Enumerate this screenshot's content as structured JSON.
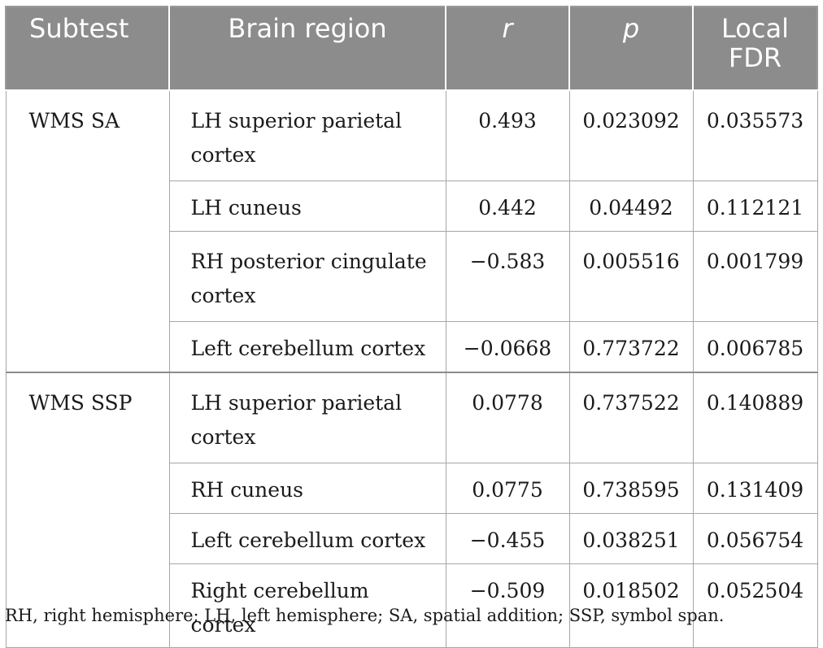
{
  "table": {
    "headers": {
      "subtest": "Subtest",
      "region": "Brain region",
      "r": "r",
      "p": "p",
      "fdr_line1": "Local",
      "fdr_line2": "FDR"
    },
    "groups": [
      {
        "subtest": "WMS SA",
        "rows": [
          {
            "region_line1": "LH superior parietal",
            "region_line2": "cortex",
            "r": "0.493",
            "p": "0.023092",
            "fdr": "0.035573"
          },
          {
            "region_line1": "LH cuneus",
            "region_line2": "",
            "r": "0.442",
            "p": "0.04492",
            "fdr": "0.112121"
          },
          {
            "region_line1": "RH posterior cingulate",
            "region_line2": "cortex",
            "r": "−0.583",
            "p": "0.005516",
            "fdr": "0.001799"
          },
          {
            "region_line1": "Left cerebellum cortex",
            "region_line2": "",
            "r": "−0.0668",
            "p": "0.773722",
            "fdr": "0.006785"
          }
        ]
      },
      {
        "subtest": "WMS SSP",
        "rows": [
          {
            "region_line1": "LH superior parietal",
            "region_line2": "cortex",
            "r": "0.0778",
            "p": "0.737522",
            "fdr": "0.140889"
          },
          {
            "region_line1": "RH cuneus",
            "region_line2": "",
            "r": "0.0775",
            "p": "0.738595",
            "fdr": "0.131409"
          },
          {
            "region_line1": "Left cerebellum cortex",
            "region_line2": "",
            "r": "−0.455",
            "p": "0.038251",
            "fdr": "0.056754"
          },
          {
            "region_line1": "Right cerebellum cortex",
            "region_line2": "",
            "r": "−0.509",
            "p": "0.018502",
            "fdr": "0.052504"
          }
        ]
      }
    ]
  },
  "footnote": "RH, right hemisphere; LH, left hemisphere; SA, spatial addition; SSP, symbol span."
}
